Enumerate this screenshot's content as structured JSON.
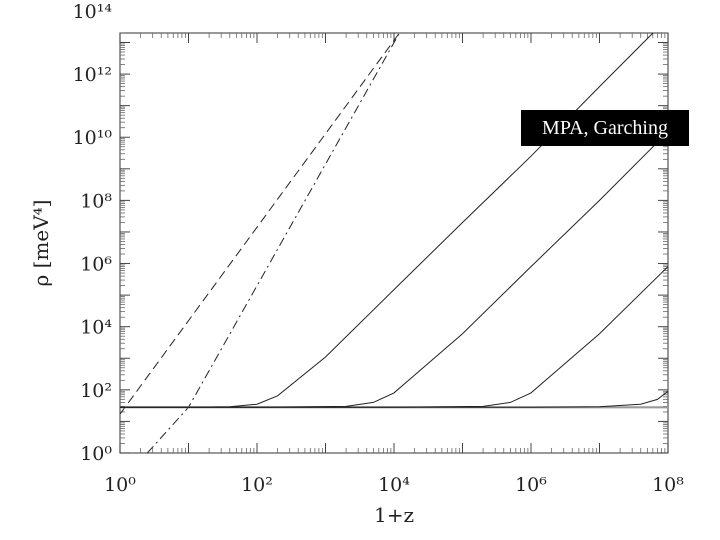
{
  "badge": {
    "text": "MPA, Garching"
  },
  "chart_data": {
    "type": "line",
    "title": "",
    "xlabel": "1+z",
    "ylabel": "ρ [meV⁴]",
    "xscale": "log",
    "yscale": "log",
    "xlim": [
      1,
      100000000
    ],
    "ylim": [
      1,
      20000000000000
    ],
    "x_ticks": [
      {
        "value": 1,
        "label": "10⁰"
      },
      {
        "value": 100,
        "label": "10²"
      },
      {
        "value": 10000,
        "label": "10⁴"
      },
      {
        "value": 1000000,
        "label": "10⁶"
      },
      {
        "value": 100000000,
        "label": "10⁸"
      }
    ],
    "y_ticks": [
      {
        "value": 1,
        "label": "10⁰"
      },
      {
        "value": 100,
        "label": "10²"
      },
      {
        "value": 10000,
        "label": "10⁴"
      },
      {
        "value": 1000000,
        "label": "10⁶"
      },
      {
        "value": 100000000,
        "label": "10⁸"
      },
      {
        "value": 10000000000,
        "label": "10¹⁰"
      },
      {
        "value": 1000000000000,
        "label": "10¹²"
      },
      {
        "value": 100000000000000,
        "label": "10¹⁴"
      }
    ],
    "grid": false,
    "series": [
      {
        "style": "dashed",
        "x": [
          1,
          12000
        ],
        "y": [
          17,
          20000000000000
        ]
      },
      {
        "style": "dashdot",
        "x": [
          2.5,
          10,
          12000
        ],
        "y": [
          1,
          28,
          20000000000000
        ]
      },
      {
        "style": "solid-gray",
        "x": [
          1,
          100000000
        ],
        "y": [
          28,
          28
        ]
      },
      {
        "style": "solid",
        "x": [
          1,
          10,
          40,
          100,
          200,
          1000,
          10000,
          100000,
          1000000,
          10000000,
          100000000
        ],
        "y": [
          28,
          28,
          29,
          35,
          65,
          1100,
          150000,
          20000000,
          2500000000,
          400000000000,
          60000000000000
        ]
      },
      {
        "style": "solid",
        "x": [
          1,
          100,
          2000,
          5000,
          10000,
          100000,
          1000000,
          10000000,
          100000000
        ],
        "y": [
          28,
          28,
          30,
          40,
          80,
          6000,
          800000,
          100000000,
          15000000000
        ]
      },
      {
        "style": "solid",
        "x": [
          1,
          10000,
          200000,
          500000,
          1000000,
          10000000,
          100000000
        ],
        "y": [
          28,
          28,
          30,
          40,
          80,
          6000,
          800000
        ]
      },
      {
        "style": "solid",
        "x": [
          1,
          1000000,
          10000000,
          40000000,
          70000000,
          100000000
        ],
        "y": [
          28,
          28,
          29,
          35,
          50,
          90
        ]
      }
    ]
  }
}
